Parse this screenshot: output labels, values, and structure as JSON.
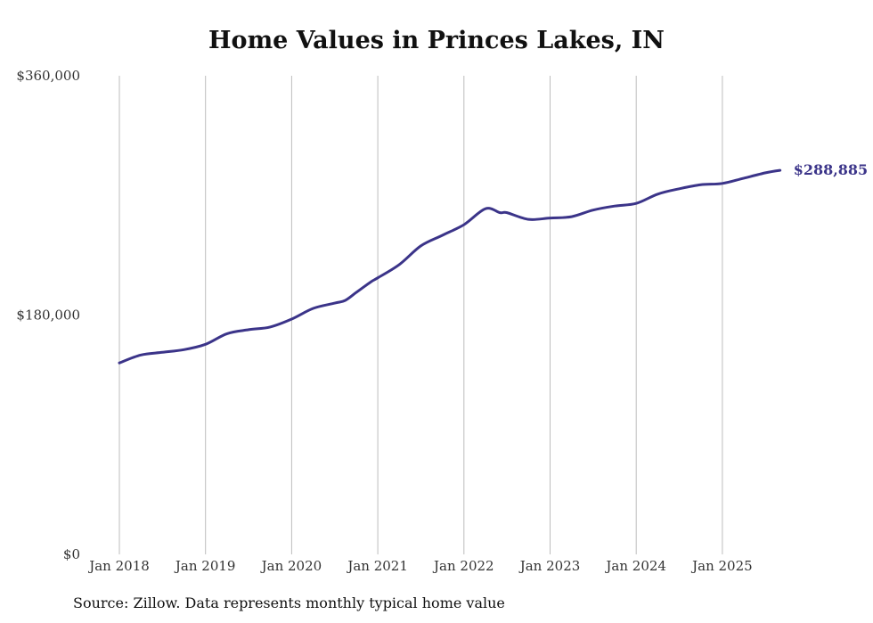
{
  "chart_data": {
    "type": "line",
    "title": "Home Values in Princes Lakes, IN",
    "xlabel": "",
    "ylabel": "",
    "ylim": [
      0,
      360000
    ],
    "y_ticks": [
      {
        "value": 0,
        "label": "$0"
      },
      {
        "value": 180000,
        "label": "$180,000"
      },
      {
        "value": 360000,
        "label": "$360,000"
      }
    ],
    "x_ticks": [
      {
        "value": 2018,
        "label": "Jan 2018"
      },
      {
        "value": 2019,
        "label": "Jan 2019"
      },
      {
        "value": 2020,
        "label": "Jan 2020"
      },
      {
        "value": 2021,
        "label": "Jan 2021"
      },
      {
        "value": 2022,
        "label": "Jan 2022"
      },
      {
        "value": 2023,
        "label": "Jan 2023"
      },
      {
        "value": 2024,
        "label": "Jan 2024"
      },
      {
        "value": 2025,
        "label": "Jan 2025"
      }
    ],
    "xlim": [
      2018,
      2026.2
    ],
    "grid": "vertical",
    "series": [
      {
        "name": "Typical home value",
        "color": "#3b3489",
        "x": [
          2018.0,
          2018.25,
          2018.5,
          2018.75,
          2019.0,
          2019.25,
          2019.5,
          2019.75,
          2020.0,
          2020.25,
          2020.5,
          2020.62,
          2020.75,
          2020.92,
          2021.0,
          2021.25,
          2021.5,
          2021.75,
          2022.0,
          2022.25,
          2022.42,
          2022.5,
          2022.75,
          2023.0,
          2023.25,
          2023.5,
          2023.75,
          2024.0,
          2024.25,
          2024.5,
          2024.75,
          2025.0,
          2025.25,
          2025.5,
          2025.67
        ],
        "values": [
          144000,
          150000,
          152000,
          154000,
          158000,
          166000,
          169000,
          171000,
          177000,
          185000,
          189000,
          191000,
          197000,
          205000,
          208000,
          218000,
          232000,
          240000,
          248000,
          260000,
          257000,
          257000,
          252000,
          253000,
          254000,
          259000,
          262000,
          264000,
          271000,
          275000,
          278000,
          279000,
          283000,
          287000,
          288885
        ]
      }
    ],
    "annotations": [
      {
        "text": "$288,885",
        "x": 2025.67,
        "y": 288885
      }
    ]
  },
  "footer": {
    "source": "Source: Zillow. Data represents monthly typical home value"
  }
}
